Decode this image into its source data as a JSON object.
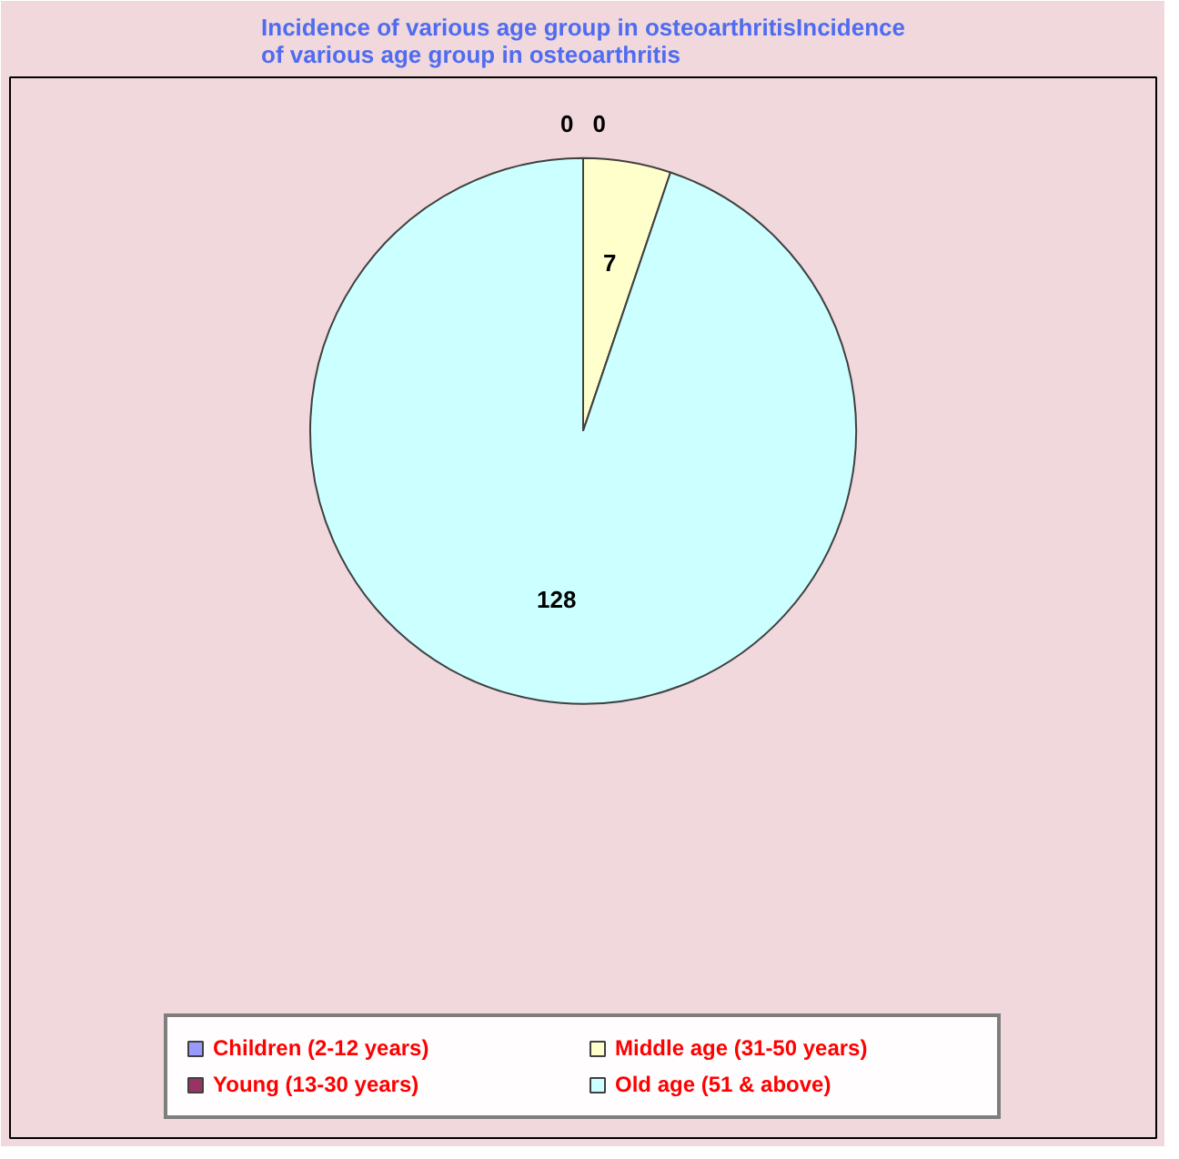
{
  "chart_data": {
    "type": "pie",
    "title": "Incidence of various age group in osteoarthritisIncidence of various age group in osteoarthritis",
    "categories": [
      "Children (2-12 years)",
      "Young (13-30 years)",
      "Middle age (31-50 years)",
      "Old age (51 & above)"
    ],
    "values": [
      0,
      0,
      7,
      128
    ],
    "colors": [
      "#9999ff",
      "#993366",
      "#ffffcc",
      "#ccffff"
    ],
    "value_labels": [
      "0",
      "0",
      "7",
      "128"
    ],
    "legend": "bottom"
  }
}
